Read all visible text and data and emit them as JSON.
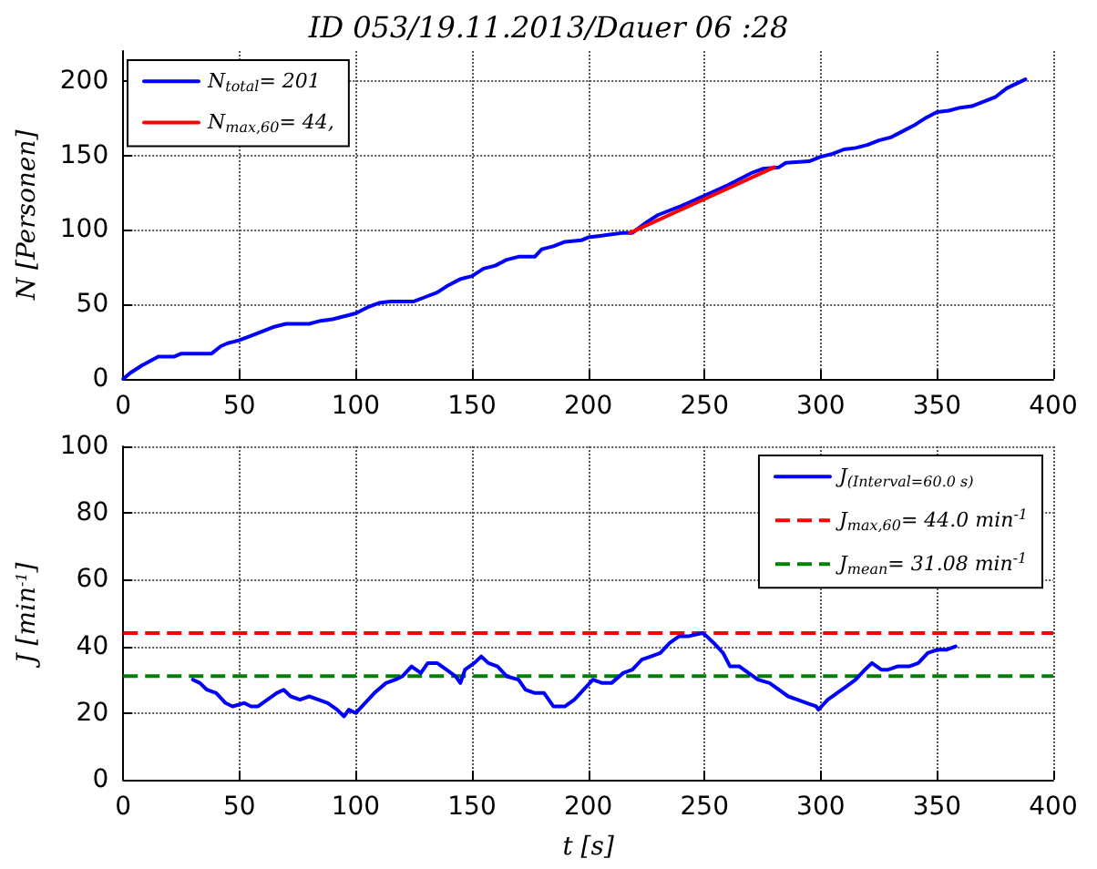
{
  "chart_data": [
    {
      "type": "line",
      "title": "ID 053/19.11.2013/Dauer 06 :28",
      "ylabel": "N [Personen]",
      "xlim": [
        0,
        400
      ],
      "xticks": [
        0,
        50,
        100,
        150,
        200,
        250,
        300,
        350,
        400
      ],
      "ylim": [
        0,
        220
      ],
      "yticks": [
        0,
        50,
        100,
        150,
        200
      ],
      "grid": true,
      "legend": "top left",
      "marker": "none",
      "line_style": "solid",
      "series": [
        {
          "name": "N$_{total}$= 201",
          "color": "#0000ff",
          "x": [
            0,
            3,
            8,
            14,
            15,
            22,
            25,
            38,
            42,
            45,
            50,
            55,
            60,
            65,
            70,
            80,
            85,
            90,
            95,
            100,
            105,
            110,
            115,
            125,
            130,
            135,
            140,
            145,
            150,
            155,
            160,
            165,
            170,
            177,
            180,
            185,
            190,
            197,
            200,
            205,
            210,
            215,
            219,
            225,
            230,
            240,
            250,
            260,
            270,
            275,
            282,
            285,
            295,
            300,
            305,
            310,
            315,
            320,
            325,
            330,
            335,
            340,
            345,
            350,
            355,
            360,
            365,
            370,
            375,
            380,
            388
          ],
          "values": [
            0,
            4,
            9,
            14,
            15,
            15,
            17,
            17,
            22,
            24,
            26,
            29,
            32,
            35,
            37,
            37,
            39,
            40,
            42,
            44,
            48,
            51,
            52,
            52,
            55,
            58,
            63,
            67,
            69,
            74,
            76,
            80,
            82,
            82,
            87,
            89,
            92,
            93,
            95,
            96,
            97,
            98,
            98,
            105,
            110,
            116,
            123,
            130,
            138,
            141,
            142,
            145,
            146,
            149,
            151,
            154,
            155,
            157,
            160,
            162,
            166,
            170,
            175,
            179,
            180,
            182,
            183,
            186,
            189,
            195,
            201
          ]
        },
        {
          "name": "N$_{max,60}$= 44,",
          "color": "#ff0000",
          "x": [
            218,
            280
          ],
          "values": [
            98,
            142
          ]
        }
      ]
    },
    {
      "type": "line",
      "xlabel": "t [s]",
      "ylabel": "J [min$^{-1}$]",
      "xlim": [
        0,
        400
      ],
      "xticks": [
        0,
        50,
        100,
        150,
        200,
        250,
        300,
        350,
        400
      ],
      "ylim": [
        0,
        100
      ],
      "yticks": [
        0,
        20,
        40,
        60,
        80,
        100
      ],
      "grid": true,
      "legend": "top right",
      "marker": "none",
      "line_style": "solid",
      "series": [
        {
          "name": "J$_{(Interval=60.0 s)}$",
          "color": "#0000ff",
          "x": [
            30,
            33,
            36,
            40,
            44,
            47,
            52,
            55,
            58,
            62,
            66,
            69,
            72,
            76,
            80,
            84,
            88,
            92,
            95,
            97,
            100,
            104,
            108,
            113,
            117,
            120,
            124,
            128,
            131,
            135,
            139,
            143,
            145,
            147,
            151,
            154,
            157,
            161,
            165,
            170,
            173,
            177,
            181,
            185,
            190,
            194,
            198,
            202,
            206,
            210,
            215,
            219,
            223,
            227,
            231,
            235,
            239,
            243,
            249,
            251,
            254,
            258,
            261,
            265,
            269,
            273,
            278,
            282,
            286,
            290,
            294,
            298,
            299,
            303,
            307,
            311,
            315,
            319,
            322,
            326,
            329,
            333,
            338,
            342,
            346,
            350,
            354,
            358
          ],
          "values": [
            30,
            29,
            27,
            26,
            23,
            22,
            23,
            22,
            22,
            24,
            26,
            27,
            25,
            24,
            25,
            24,
            23,
            21,
            19,
            21,
            20,
            23,
            26,
            29,
            30,
            31,
            34,
            32,
            35,
            35,
            33,
            31,
            29,
            33,
            35,
            37,
            35,
            34,
            31,
            30,
            27,
            26,
            26,
            22,
            22,
            24,
            27,
            30,
            29,
            29,
            32,
            33,
            36,
            37,
            38,
            41,
            43,
            43,
            44,
            43,
            41,
            38,
            34,
            34,
            32,
            30,
            29,
            27,
            25,
            24,
            23,
            22,
            21,
            24,
            26,
            28,
            30,
            33,
            35,
            33,
            33,
            34,
            34,
            35,
            38,
            39,
            39,
            40
          ]
        }
      ],
      "ref_lines": [
        {
          "axis": "y",
          "value": 44.0,
          "label": "J$_{max,60}$= 44.0 min$^{-1}$",
          "color": "#ff0000",
          "line_style": "dashed"
        },
        {
          "axis": "y",
          "value": 31.08,
          "label": "J$_{mean}$= 31.08 min$^{-1}$",
          "color": "#008000",
          "line_style": "dashed"
        }
      ]
    }
  ]
}
